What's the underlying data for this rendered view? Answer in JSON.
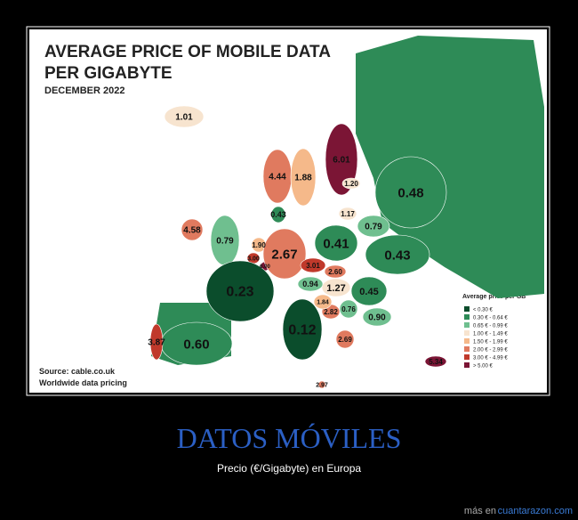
{
  "header": {
    "title_lines": [
      "AVERAGE PRICE OF MOBILE DATA",
      "PER GIGABYTE"
    ],
    "subtitle": "DECEMBER 2022"
  },
  "map": {
    "labels": [
      "1.01",
      "4.44",
      "1.88",
      "6.01",
      "1.20",
      "1.17",
      "0.79",
      "0.48",
      "4.58",
      "0.79",
      "0.43",
      "1.90",
      "3.00",
      "6.00",
      "2.67",
      "0.41",
      "0.43",
      "3.01",
      "2.60",
      "0.23",
      "1.27",
      "0.94",
      "0.45",
      "0.90",
      "0.12",
      "0.60",
      "3.87",
      "2.82",
      "0.76",
      "1.84",
      "2.69",
      "5.34",
      "2.97"
    ]
  },
  "legend": {
    "title": "Average price per GB",
    "items": [
      "< 0.30 €",
      "0.30 € - 0.64 €",
      "0.65 € - 0.99 €",
      "1.00 € - 1.49 €",
      "1.50 € - 1.99 €",
      "2.00 € - 2.99 €",
      "3.00 € - 4.99 €",
      "> 5.00 €"
    ]
  },
  "source": [
    "Source: cable.co.uk",
    "Worldwide data pricing"
  ],
  "caption": {
    "title": "DATOS MÓVILES",
    "subtitle": "Precio (€/Gigabyte) en Europa"
  },
  "footer": {
    "prefix": "más en",
    "link": "cuantarazon.com"
  }
}
